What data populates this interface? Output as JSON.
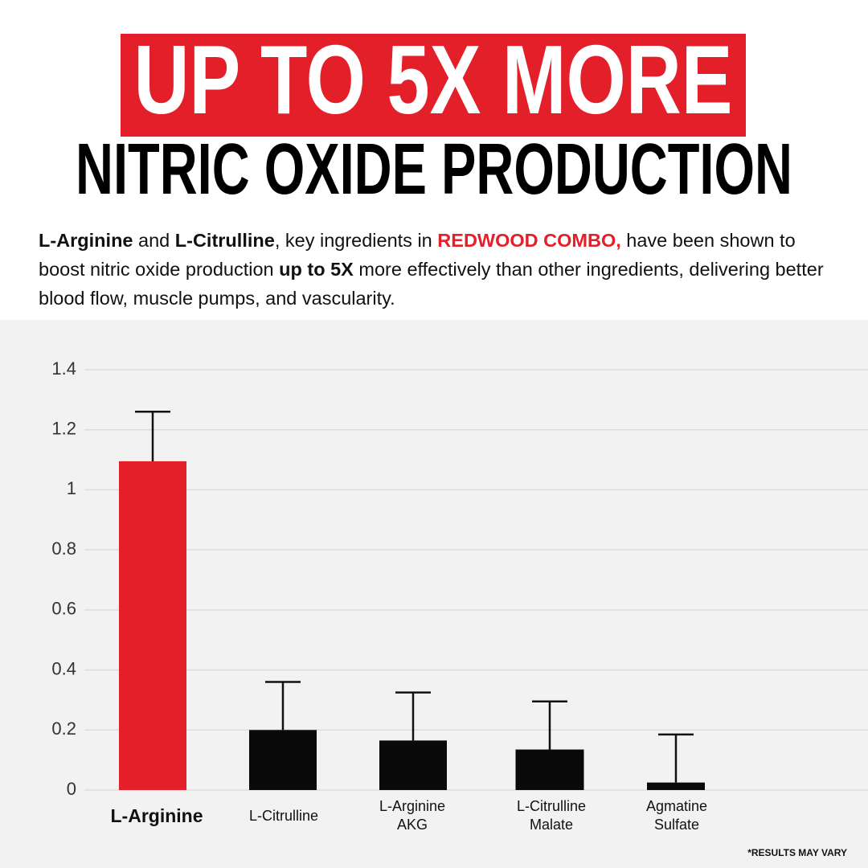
{
  "header": {
    "headline": "UP TO 5X MORE",
    "subheadline": "NITRIC OXIDE PRODUCTION"
  },
  "paragraph": [
    "L-Arginine",
    " and ",
    "L-Citrulline",
    ", key ingredients in ",
    "REDWOOD COMBO,",
    " have been shown to boost nitric oxide production ",
    "up to 5X",
    " more effectively than other ingredients, delivering better blood flow, muscle pumps, and vascularity."
  ],
  "chart_data": {
    "type": "bar",
    "categories": [
      "L-Arginine",
      "L-Citrulline",
      "L-Arginine AKG",
      "L-Citrulline Malate",
      "Agmatine Sulfate"
    ],
    "values": [
      1.095,
      0.2,
      0.165,
      0.135,
      0.025
    ],
    "errors": [
      0.165,
      0.16,
      0.16,
      0.16,
      0.16
    ],
    "colors": [
      "#e3202a",
      "#0a0a0a",
      "#0a0a0a",
      "#0a0a0a",
      "#0a0a0a"
    ],
    "ylim": [
      0,
      1.4
    ],
    "yticks": [
      0,
      0.2,
      0.4,
      0.6,
      0.8,
      1,
      1.2,
      1.4
    ],
    "grid": true
  },
  "footnote": "*RESULTS MAY VARY"
}
